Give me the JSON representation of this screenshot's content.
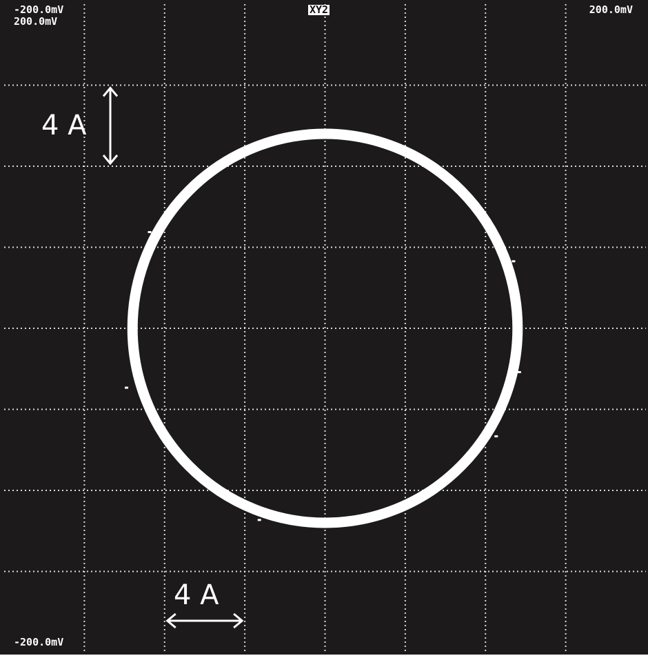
{
  "screen": {
    "mode_label": "XY2",
    "top_left_x_label": "-200.0mV",
    "top_left_y_label": "200.0mV",
    "top_right_x_label": "200.0mV",
    "bottom_left_y_label": "-200.0mV",
    "background_color": "#1c1a1a",
    "trace_color": "#ffffff",
    "grid_color": "#ffffff"
  },
  "scale_markers": {
    "vertical": "4 A",
    "horizontal": "4 A"
  },
  "chart_data": {
    "type": "scatter",
    "title": "",
    "xlabel": "",
    "ylabel": "",
    "xlim": [
      -200.0,
      200.0
    ],
    "ylim": [
      -200.0,
      200.0
    ],
    "x_divisions": 8,
    "y_divisions": 8,
    "grid": true,
    "grid_style": "dotted",
    "series": [
      {
        "shape": "circle",
        "center": [
          0.0,
          0.0
        ],
        "radius": 120.0
      }
    ]
  }
}
